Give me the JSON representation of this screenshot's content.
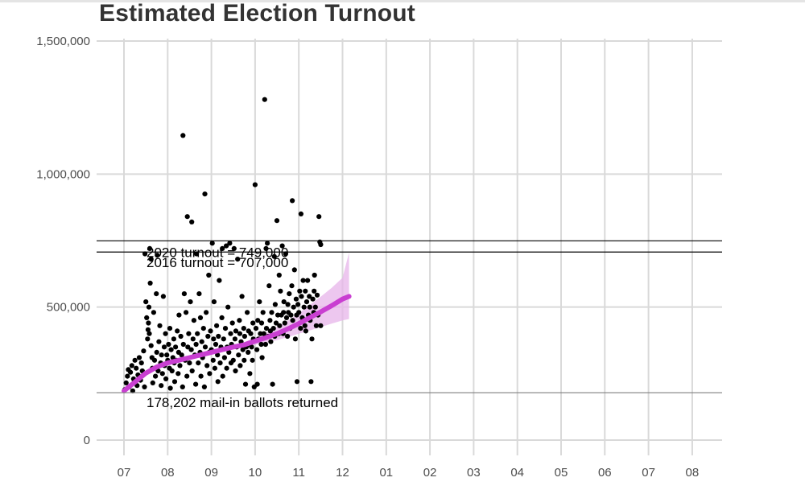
{
  "page": {
    "title": "Estimated Election Turnout"
  },
  "chart_data": {
    "type": "scatter",
    "title": "Estimated Election Turnout",
    "xlabel": "",
    "ylabel": "",
    "x_tick_labels": [
      "07",
      "08",
      "09",
      "10",
      "11",
      "12",
      "01",
      "02",
      "03",
      "04",
      "05",
      "06",
      "07",
      "08"
    ],
    "x_range_ticks": [
      0,
      13
    ],
    "y_ticks": [
      0,
      500000,
      1000000,
      1500000
    ],
    "y_tick_labels": [
      "0",
      "500,000",
      "1,000,000",
      "1,500,000"
    ],
    "ylim": [
      0,
      1500000
    ],
    "grid": true,
    "reference_lines": [
      {
        "value": 749000,
        "label": "2020 turnout = 749,000",
        "color": "#000000"
      },
      {
        "value": 707000,
        "label": "2016 turnout = 707,000",
        "color": "#000000"
      },
      {
        "value": 178202,
        "label": "178,202 mail-in ballots returned",
        "color": "#808080"
      }
    ],
    "trend": {
      "name": "fit",
      "color": "#c93fd1",
      "band_color": "#e7b4ea",
      "x": [
        0.0,
        0.25,
        0.5,
        0.75,
        1.0,
        1.25,
        1.5,
        1.75,
        2.0,
        2.25,
        2.5,
        2.75,
        3.0,
        3.25,
        3.5,
        3.75,
        4.0,
        4.25,
        4.5,
        4.75,
        5.0,
        5.15
      ],
      "y": [
        185000,
        218000,
        252000,
        275000,
        290000,
        300000,
        310000,
        320000,
        330000,
        340000,
        350000,
        358000,
        372000,
        385000,
        400000,
        418000,
        438000,
        460000,
        482000,
        505000,
        530000,
        540000
      ],
      "lower": [
        183000,
        212000,
        246000,
        269000,
        284000,
        294000,
        304000,
        314000,
        324000,
        333000,
        342000,
        348000,
        358000,
        367000,
        376000,
        387000,
        400000,
        412000,
        425000,
        438000,
        450000,
        455000
      ],
      "upper": [
        187000,
        224000,
        258000,
        281000,
        296000,
        306000,
        316000,
        326000,
        336000,
        347000,
        358000,
        368000,
        386000,
        403000,
        424000,
        449000,
        476000,
        508000,
        539000,
        572000,
        610000,
        705000
      ]
    },
    "points": [
      [
        0.02,
        190000
      ],
      [
        0.05,
        215000
      ],
      [
        0.08,
        240000
      ],
      [
        0.1,
        265000
      ],
      [
        0.12,
        200000
      ],
      [
        0.15,
        255000
      ],
      [
        0.18,
        280000
      ],
      [
        0.2,
        185000
      ],
      [
        0.22,
        230000
      ],
      [
        0.25,
        300000
      ],
      [
        0.28,
        270000
      ],
      [
        0.3,
        205000
      ],
      [
        0.32,
        245000
      ],
      [
        0.35,
        310000
      ],
      [
        0.38,
        225000
      ],
      [
        0.4,
        290000
      ],
      [
        0.42,
        260000
      ],
      [
        0.45,
        335000
      ],
      [
        0.47,
        200000
      ],
      [
        0.48,
        700000
      ],
      [
        0.5,
        520000
      ],
      [
        0.52,
        460000
      ],
      [
        0.54,
        380000
      ],
      [
        0.55,
        415000
      ],
      [
        0.56,
        440000
      ],
      [
        0.57,
        500000
      ],
      [
        0.58,
        400000
      ],
      [
        0.59,
        720000
      ],
      [
        0.6,
        590000
      ],
      [
        0.62,
        680000
      ],
      [
        0.62,
        355000
      ],
      [
        0.64,
        310000
      ],
      [
        0.65,
        270000
      ],
      [
        0.66,
        215000
      ],
      [
        0.68,
        480000
      ],
      [
        0.7,
        300000
      ],
      [
        0.72,
        240000
      ],
      [
        0.74,
        550000
      ],
      [
        0.75,
        330000
      ],
      [
        0.76,
        695000
      ],
      [
        0.78,
        260000
      ],
      [
        0.8,
        370000
      ],
      [
        0.82,
        430000
      ],
      [
        0.84,
        290000
      ],
      [
        0.85,
        205000
      ],
      [
        0.86,
        320000
      ],
      [
        0.88,
        250000
      ],
      [
        0.9,
        540000
      ],
      [
        0.92,
        350000
      ],
      [
        0.93,
        280000
      ],
      [
        0.95,
        400000
      ],
      [
        0.96,
        230000
      ],
      [
        0.98,
        320000
      ],
      [
        1.0,
        300000
      ],
      [
        1.02,
        360000
      ],
      [
        1.04,
        270000
      ],
      [
        1.05,
        420000
      ],
      [
        1.06,
        195000
      ],
      [
        1.08,
        340000
      ],
      [
        1.1,
        260000
      ],
      [
        1.12,
        310000
      ],
      [
        1.14,
        380000
      ],
      [
        1.15,
        290000
      ],
      [
        1.16,
        220000
      ],
      [
        1.18,
        350000
      ],
      [
        1.2,
        300000
      ],
      [
        1.22,
        410000
      ],
      [
        1.24,
        250000
      ],
      [
        1.25,
        330000
      ],
      [
        1.26,
        470000
      ],
      [
        1.28,
        280000
      ],
      [
        1.3,
        390000
      ],
      [
        1.32,
        320000
      ],
      [
        1.34,
        200000
      ],
      [
        1.35,
        1145000
      ],
      [
        1.36,
        360000
      ],
      [
        1.38,
        550000
      ],
      [
        1.4,
        300000
      ],
      [
        1.42,
        480000
      ],
      [
        1.44,
        240000
      ],
      [
        1.45,
        840000
      ],
      [
        1.46,
        350000
      ],
      [
        1.48,
        400000
      ],
      [
        1.5,
        290000
      ],
      [
        1.52,
        520000
      ],
      [
        1.54,
        340000
      ],
      [
        1.55,
        820000
      ],
      [
        1.56,
        260000
      ],
      [
        1.58,
        380000
      ],
      [
        1.6,
        450000
      ],
      [
        1.62,
        320000
      ],
      [
        1.64,
        210000
      ],
      [
        1.65,
        360000
      ],
      [
        1.66,
        700000
      ],
      [
        1.68,
        400000
      ],
      [
        1.7,
        290000
      ],
      [
        1.72,
        550000
      ],
      [
        1.74,
        330000
      ],
      [
        1.75,
        460000
      ],
      [
        1.76,
        240000
      ],
      [
        1.78,
        370000
      ],
      [
        1.8,
        310000
      ],
      [
        1.82,
        420000
      ],
      [
        1.84,
        200000
      ],
      [
        1.85,
        925000
      ],
      [
        1.86,
        350000
      ],
      [
        1.88,
        480000
      ],
      [
        1.9,
        280000
      ],
      [
        1.92,
        390000
      ],
      [
        1.94,
        620000
      ],
      [
        1.95,
        330000
      ],
      [
        1.96,
        250000
      ],
      [
        1.98,
        410000
      ],
      [
        2.0,
        340000
      ],
      [
        2.02,
        740000
      ],
      [
        2.04,
        300000
      ],
      [
        2.05,
        380000
      ],
      [
        2.06,
        520000
      ],
      [
        2.08,
        270000
      ],
      [
        2.1,
        360000
      ],
      [
        2.12,
        430000
      ],
      [
        2.14,
        320000
      ],
      [
        2.15,
        220000
      ],
      [
        2.16,
        390000
      ],
      [
        2.18,
        600000
      ],
      [
        2.2,
        290000
      ],
      [
        2.22,
        350000
      ],
      [
        2.24,
        460000
      ],
      [
        2.25,
        720000
      ],
      [
        2.26,
        240000
      ],
      [
        2.28,
        380000
      ],
      [
        2.3,
        310000
      ],
      [
        2.32,
        420000
      ],
      [
        2.34,
        730000
      ],
      [
        2.35,
        270000
      ],
      [
        2.36,
        350000
      ],
      [
        2.38,
        500000
      ],
      [
        2.4,
        330000
      ],
      [
        2.42,
        740000
      ],
      [
        2.44,
        400000
      ],
      [
        2.45,
        290000
      ],
      [
        2.46,
        360000
      ],
      [
        2.48,
        440000
      ],
      [
        2.5,
        300000
      ],
      [
        2.52,
        720000
      ],
      [
        2.54,
        380000
      ],
      [
        2.55,
        260000
      ],
      [
        2.56,
        410000
      ],
      [
        2.58,
        350000
      ],
      [
        2.6,
        680000
      ],
      [
        2.62,
        320000
      ],
      [
        2.64,
        450000
      ],
      [
        2.65,
        400000
      ],
      [
        2.66,
        280000
      ],
      [
        2.68,
        370000
      ],
      [
        2.7,
        540000
      ],
      [
        2.72,
        340000
      ],
      [
        2.74,
        420000
      ],
      [
        2.75,
        300000
      ],
      [
        2.76,
        390000
      ],
      [
        2.78,
        210000
      ],
      [
        2.8,
        350000
      ],
      [
        2.82,
        480000
      ],
      [
        2.84,
        330000
      ],
      [
        2.85,
        410000
      ],
      [
        2.86,
        360000
      ],
      [
        2.88,
        250000
      ],
      [
        2.9,
        400000
      ],
      [
        2.92,
        350000
      ],
      [
        2.94,
        300000
      ],
      [
        2.95,
        440000
      ],
      [
        2.96,
        380000
      ],
      [
        2.98,
        200000
      ],
      [
        3.0,
        960000
      ],
      [
        3.02,
        420000
      ],
      [
        3.04,
        340000
      ],
      [
        3.05,
        210000
      ],
      [
        3.06,
        450000
      ],
      [
        3.08,
        380000
      ],
      [
        3.1,
        520000
      ],
      [
        3.12,
        400000
      ],
      [
        3.14,
        360000
      ],
      [
        3.15,
        440000
      ],
      [
        3.16,
        310000
      ],
      [
        3.18,
        480000
      ],
      [
        3.2,
        400000
      ],
      [
        3.22,
        1280000
      ],
      [
        3.24,
        360000
      ],
      [
        3.25,
        720000
      ],
      [
        3.26,
        420000
      ],
      [
        3.28,
        740000
      ],
      [
        3.3,
        390000
      ],
      [
        3.32,
        580000
      ],
      [
        3.34,
        450000
      ],
      [
        3.35,
        410000
      ],
      [
        3.36,
        370000
      ],
      [
        3.38,
        480000
      ],
      [
        3.4,
        210000
      ],
      [
        3.42,
        420000
      ],
      [
        3.44,
        690000
      ],
      [
        3.45,
        390000
      ],
      [
        3.46,
        510000
      ],
      [
        3.48,
        440000
      ],
      [
        3.5,
        825000
      ],
      [
        3.52,
        470000
      ],
      [
        3.54,
        400000
      ],
      [
        3.55,
        620000
      ],
      [
        3.56,
        430000
      ],
      [
        3.58,
        560000
      ],
      [
        3.6,
        470000
      ],
      [
        3.62,
        730000
      ],
      [
        3.64,
        400000
      ],
      [
        3.65,
        480000
      ],
      [
        3.66,
        520000
      ],
      [
        3.68,
        440000
      ],
      [
        3.7,
        700000
      ],
      [
        3.72,
        460000
      ],
      [
        3.74,
        390000
      ],
      [
        3.75,
        510000
      ],
      [
        3.76,
        480000
      ],
      [
        3.78,
        550000
      ],
      [
        3.8,
        420000
      ],
      [
        3.82,
        470000
      ],
      [
        3.84,
        580000
      ],
      [
        3.85,
        900000
      ],
      [
        3.86,
        450000
      ],
      [
        3.88,
        500000
      ],
      [
        3.9,
        640000
      ],
      [
        3.92,
        380000
      ],
      [
        3.94,
        530000
      ],
      [
        3.95,
        470000
      ],
      [
        3.96,
        220000
      ],
      [
        3.98,
        510000
      ],
      [
        4.0,
        480000
      ],
      [
        4.02,
        560000
      ],
      [
        4.04,
        420000
      ],
      [
        4.05,
        850000
      ],
      [
        4.06,
        540000
      ],
      [
        4.08,
        460000
      ],
      [
        4.1,
        600000
      ],
      [
        4.12,
        500000
      ],
      [
        4.14,
        430000
      ],
      [
        4.15,
        560000
      ],
      [
        4.16,
        410000
      ],
      [
        4.18,
        520000
      ],
      [
        4.2,
        600000
      ],
      [
        4.22,
        470000
      ],
      [
        4.24,
        540000
      ],
      [
        4.25,
        500000
      ],
      [
        4.26,
        450000
      ],
      [
        4.28,
        220000
      ],
      [
        4.3,
        380000
      ],
      [
        4.32,
        530000
      ],
      [
        4.34,
        480000
      ],
      [
        4.35,
        560000
      ],
      [
        4.36,
        620000
      ],
      [
        4.38,
        500000
      ],
      [
        4.4,
        430000
      ],
      [
        4.42,
        545000
      ],
      [
        4.44,
        470000
      ],
      [
        4.46,
        840000
      ],
      [
        4.48,
        745000
      ],
      [
        4.5,
        430000
      ],
      [
        4.5,
        735000
      ]
    ]
  }
}
